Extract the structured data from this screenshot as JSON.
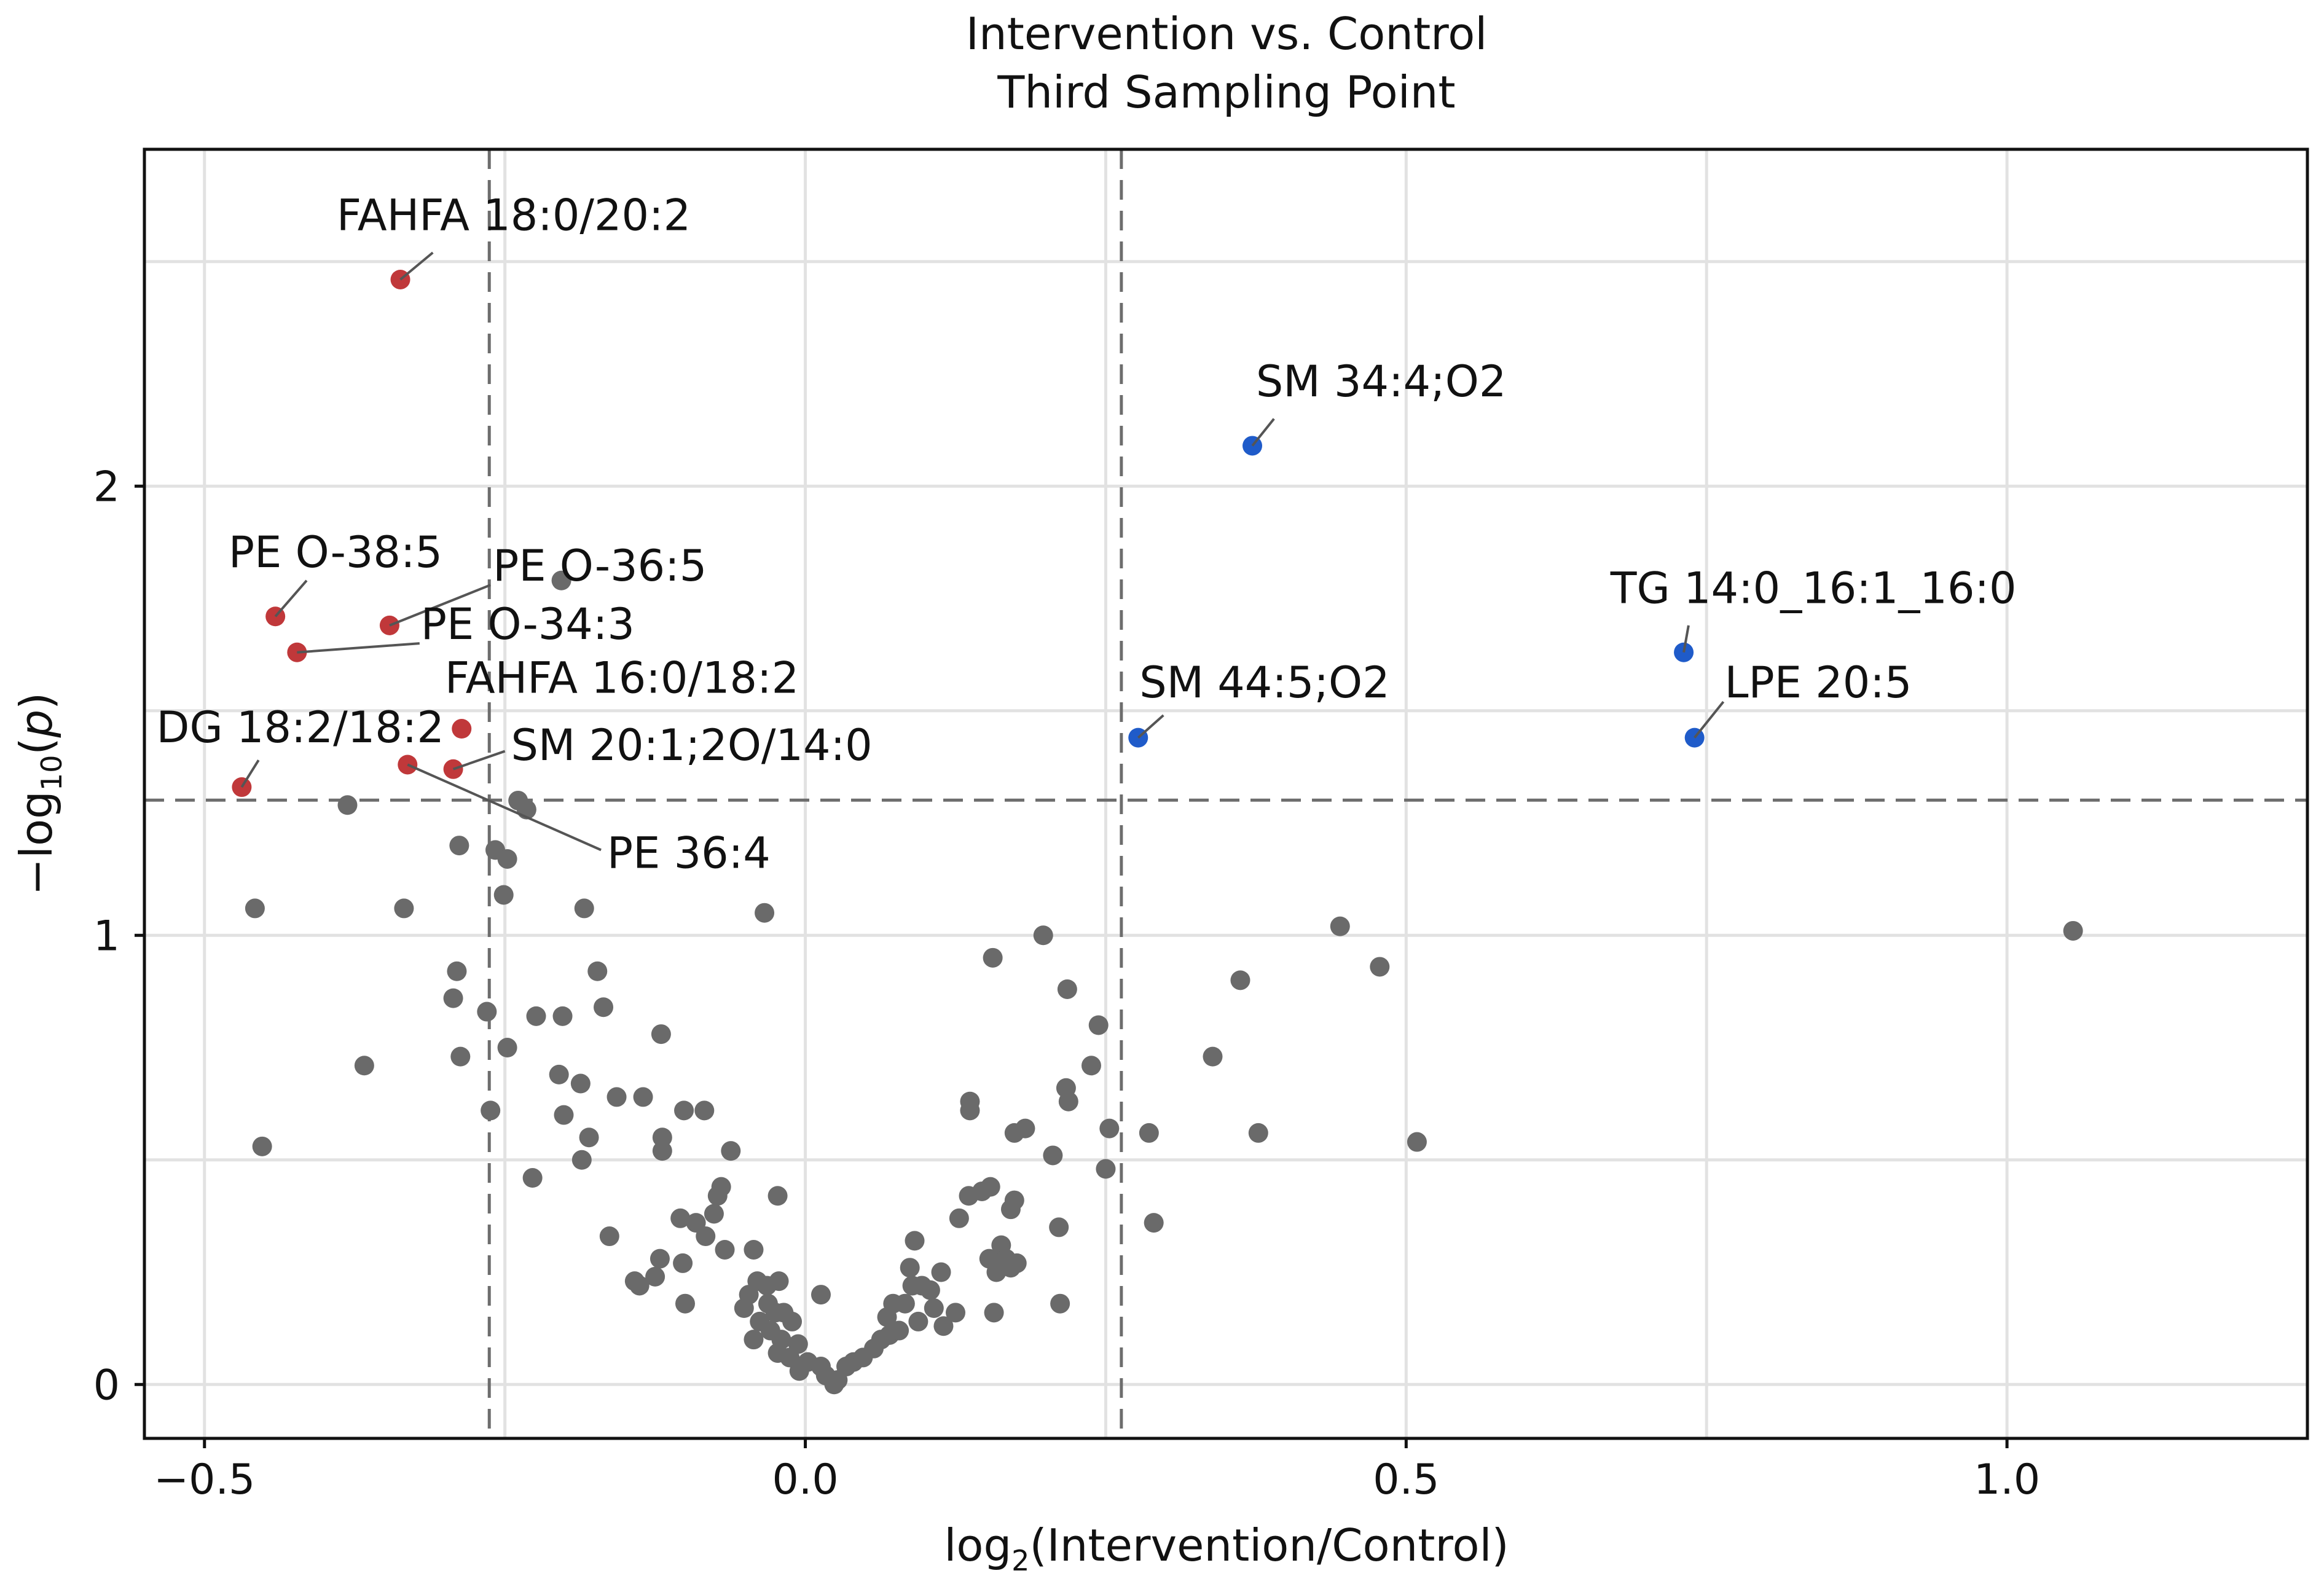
{
  "chart_data": {
    "type": "scatter",
    "title": [
      "Intervention vs. Control",
      "Third Sampling Point"
    ],
    "xlabel": {
      "pre": "log",
      "sub": "2",
      "post": "(Intervention/Control)"
    },
    "ylabel": {
      "pre": "−log",
      "sub": "10",
      "mid": "(",
      "italic": "p",
      "post": ")"
    },
    "xlim": [
      -0.55,
      1.25
    ],
    "ylim": [
      -0.12,
      2.75
    ],
    "x_ticks": [
      {
        "value": -0.5,
        "label": "−0.5"
      },
      {
        "value": 0.0,
        "label": "0.0"
      },
      {
        "value": 0.5,
        "label": "0.5"
      },
      {
        "value": 1.0,
        "label": "1.0"
      }
    ],
    "y_ticks": [
      {
        "value": 0,
        "label": "0"
      },
      {
        "value": 1,
        "label": "1"
      },
      {
        "value": 2,
        "label": "2"
      }
    ],
    "x_grid": [
      -0.5,
      -0.25,
      0,
      0.25,
      0.5,
      0.75,
      1.0
    ],
    "y_grid": [
      0,
      0.5,
      1,
      1.5,
      2,
      2.5
    ],
    "grid": true,
    "thresholds": {
      "x": [
        -0.263,
        0.263
      ],
      "y": 1.301
    },
    "colors": {
      "down": "#c0383a",
      "up": "#1f5bc9",
      "ns": "#6a6a6a",
      "grid": "#e2e2e2",
      "threshold": "#6d6d6d"
    },
    "labeled_points": [
      {
        "label": "FAHFA 18:0/20:2",
        "x": -0.337,
        "y": 2.46,
        "group": "down",
        "lx": -0.39,
        "ly": 2.57,
        "anchor": "start"
      },
      {
        "label": "PE O-38:5",
        "x": -0.441,
        "y": 1.71,
        "group": "down",
        "lx": -0.48,
        "ly": 1.82,
        "anchor": "start"
      },
      {
        "label": "PE O-36:5",
        "x": -0.346,
        "y": 1.69,
        "group": "down",
        "lx": -0.26,
        "ly": 1.79,
        "anchor": "start"
      },
      {
        "label": "PE O-34:3",
        "x": -0.423,
        "y": 1.63,
        "group": "down",
        "lx": -0.32,
        "ly": 1.66,
        "anchor": "start"
      },
      {
        "label": "FAHFA 16:0/18:2",
        "x": -0.286,
        "y": 1.46,
        "group": "down",
        "lx": -0.3,
        "ly": 1.54,
        "anchor": "start"
      },
      {
        "label": "DG 18:2/18:2",
        "x": -0.469,
        "y": 1.33,
        "group": "down",
        "lx": -0.54,
        "ly": 1.43,
        "anchor": "start"
      },
      {
        "label": "SM 20:1;2O/14:0",
        "x": -0.293,
        "y": 1.37,
        "group": "down",
        "lx": -0.245,
        "ly": 1.39,
        "anchor": "start"
      },
      {
        "label": "PE 36:4",
        "x": -0.331,
        "y": 1.38,
        "group": "down",
        "lx": -0.165,
        "ly": 1.15,
        "anchor": "start"
      },
      {
        "label": "SM 34:4;O2",
        "x": 0.372,
        "y": 2.09,
        "group": "up",
        "lx": 0.375,
        "ly": 2.2,
        "anchor": "start"
      },
      {
        "label": "SM 44:5;O2",
        "x": 0.277,
        "y": 1.44,
        "group": "up",
        "lx": 0.278,
        "ly": 1.53,
        "anchor": "start"
      },
      {
        "label": "TG 14:0_16:1_16:0",
        "x": 0.731,
        "y": 1.63,
        "group": "up",
        "lx": 0.67,
        "ly": 1.74,
        "anchor": "start"
      },
      {
        "label": "LPE 20:5",
        "x": 0.74,
        "y": 1.44,
        "group": "up",
        "lx": 0.765,
        "ly": 1.53,
        "anchor": "start"
      }
    ],
    "points": [
      [
        -0.203,
        1.79
      ],
      [
        -0.381,
        1.29
      ],
      [
        -0.239,
        1.3
      ],
      [
        -0.232,
        1.28
      ],
      [
        -0.258,
        1.19
      ],
      [
        -0.248,
        1.17
      ],
      [
        -0.288,
        1.2
      ],
      [
        -0.458,
        1.06
      ],
      [
        -0.334,
        1.06
      ],
      [
        -0.251,
        1.09
      ],
      [
        -0.184,
        1.06
      ],
      [
        -0.034,
        1.05
      ],
      [
        -0.29,
        0.92
      ],
      [
        -0.173,
        0.92
      ],
      [
        -0.293,
        0.86
      ],
      [
        -0.265,
        0.83
      ],
      [
        -0.224,
        0.82
      ],
      [
        -0.202,
        0.82
      ],
      [
        -0.168,
        0.84
      ],
      [
        -0.12,
        0.78
      ],
      [
        -0.248,
        0.75
      ],
      [
        -0.367,
        0.71
      ],
      [
        -0.287,
        0.73
      ],
      [
        -0.205,
        0.69
      ],
      [
        -0.187,
        0.67
      ],
      [
        -0.157,
        0.64
      ],
      [
        -0.135,
        0.64
      ],
      [
        -0.262,
        0.61
      ],
      [
        -0.201,
        0.6
      ],
      [
        -0.101,
        0.61
      ],
      [
        -0.084,
        0.61
      ],
      [
        -0.18,
        0.55
      ],
      [
        -0.119,
        0.55
      ],
      [
        -0.062,
        0.52
      ],
      [
        -0.452,
        0.53
      ],
      [
        -0.119,
        0.52
      ],
      [
        -0.186,
        0.5
      ],
      [
        -0.227,
        0.46
      ],
      [
        -0.073,
        0.42
      ],
      [
        -0.07,
        0.44
      ],
      [
        -0.023,
        0.42
      ],
      [
        -0.163,
        0.33
      ],
      [
        -0.091,
        0.36
      ],
      [
        -0.104,
        0.37
      ],
      [
        -0.076,
        0.38
      ],
      [
        -0.083,
        0.33
      ],
      [
        -0.067,
        0.3
      ],
      [
        -0.043,
        0.3
      ],
      [
        -0.121,
        0.28
      ],
      [
        -0.102,
        0.27
      ],
      [
        -0.142,
        0.23
      ],
      [
        -0.125,
        0.24
      ],
      [
        -0.138,
        0.22
      ],
      [
        -0.1,
        0.18
      ],
      [
        -0.04,
        0.23
      ],
      [
        -0.032,
        0.22
      ],
      [
        -0.022,
        0.23
      ],
      [
        -0.047,
        0.2
      ],
      [
        -0.031,
        0.18
      ],
      [
        -0.025,
        0.16
      ],
      [
        -0.051,
        0.17
      ],
      [
        -0.038,
        0.14
      ],
      [
        -0.018,
        0.16
      ],
      [
        -0.029,
        0.12
      ],
      [
        -0.043,
        0.1
      ],
      [
        -0.02,
        0.1
      ],
      [
        -0.011,
        0.14
      ],
      [
        -0.006,
        0.09
      ],
      [
        -0.023,
        0.07
      ],
      [
        -0.013,
        0.06
      ],
      [
        0.002,
        0.05
      ],
      [
        -0.005,
        0.03
      ],
      [
        0.013,
        0.2
      ],
      [
        0.013,
        0.04
      ],
      [
        0.017,
        0.02
      ],
      [
        0.024,
        0.0
      ],
      [
        0.027,
        0.01
      ],
      [
        0.034,
        0.04
      ],
      [
        0.04,
        0.05
      ],
      [
        0.048,
        0.06
      ],
      [
        0.057,
        0.08
      ],
      [
        0.063,
        0.1
      ],
      [
        0.07,
        0.11
      ],
      [
        0.078,
        0.12
      ],
      [
        0.068,
        0.15
      ],
      [
        0.073,
        0.18
      ],
      [
        0.083,
        0.18
      ],
      [
        0.094,
        0.14
      ],
      [
        0.097,
        0.22
      ],
      [
        0.089,
        0.22
      ],
      [
        0.087,
        0.26
      ],
      [
        0.091,
        0.32
      ],
      [
        0.104,
        0.21
      ],
      [
        0.113,
        0.25
      ],
      [
        0.107,
        0.17
      ],
      [
        0.115,
        0.13
      ],
      [
        0.125,
        0.16
      ],
      [
        0.128,
        0.37
      ],
      [
        0.136,
        0.42
      ],
      [
        0.147,
        0.43
      ],
      [
        0.154,
        0.44
      ],
      [
        0.153,
        0.28
      ],
      [
        0.159,
        0.25
      ],
      [
        0.163,
        0.31
      ],
      [
        0.167,
        0.28
      ],
      [
        0.171,
        0.26
      ],
      [
        0.176,
        0.27
      ],
      [
        0.157,
        0.16
      ],
      [
        0.171,
        0.39
      ],
      [
        0.174,
        0.41
      ],
      [
        0.137,
        0.61
      ],
      [
        0.137,
        0.63
      ],
      [
        0.174,
        0.56
      ],
      [
        0.183,
        0.57
      ],
      [
        0.156,
        0.95
      ],
      [
        0.198,
        1.0
      ],
      [
        0.218,
        0.88
      ],
      [
        0.206,
        0.51
      ],
      [
        0.211,
        0.35
      ],
      [
        0.212,
        0.18
      ],
      [
        0.217,
        0.66
      ],
      [
        0.219,
        0.63
      ],
      [
        0.238,
        0.71
      ],
      [
        0.244,
        0.8
      ],
      [
        0.25,
        0.48
      ],
      [
        0.253,
        0.57
      ],
      [
        0.286,
        0.56
      ],
      [
        0.29,
        0.36
      ],
      [
        0.339,
        0.73
      ],
      [
        0.362,
        0.9
      ],
      [
        0.377,
        0.56
      ],
      [
        0.445,
        1.02
      ],
      [
        0.478,
        0.93
      ],
      [
        0.509,
        0.54
      ],
      [
        1.055,
        1.01
      ]
    ]
  }
}
